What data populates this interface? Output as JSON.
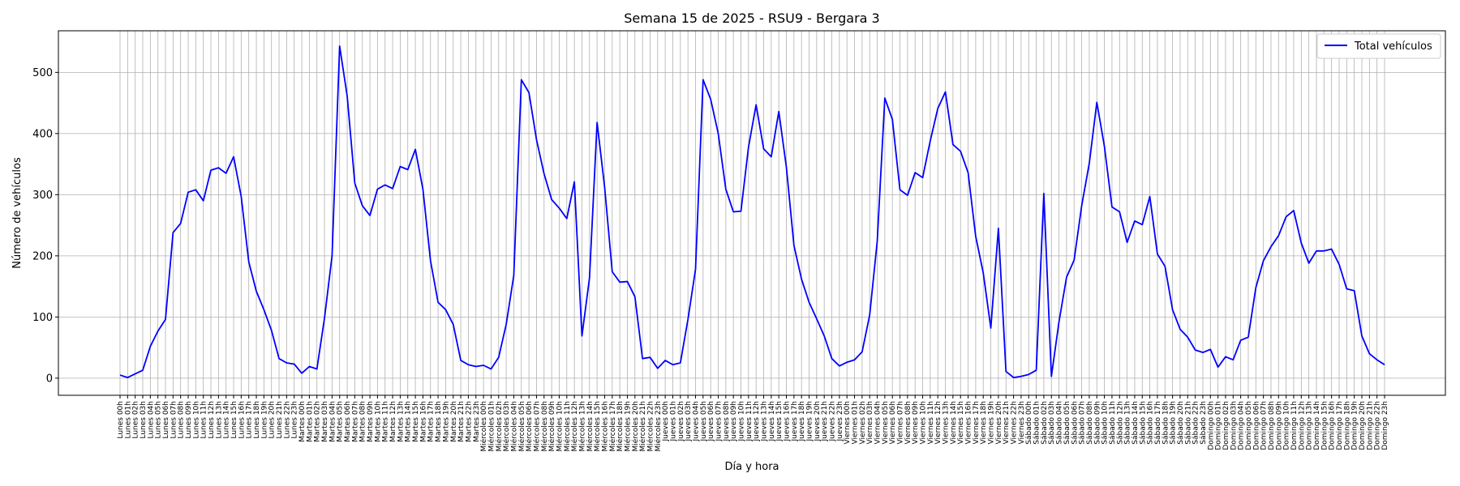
{
  "chart_data": {
    "type": "line",
    "title": "Semana 15 de 2025 - RSU9 - Bergara 3",
    "xlabel": "Día y hora",
    "ylabel": "Número de vehículos",
    "ylim": [
      -28,
      568
    ],
    "yticks": [
      0,
      100,
      200,
      300,
      400,
      500
    ],
    "grid": true,
    "legend": "top-right",
    "days": [
      "Lunes",
      "Martes",
      "Miércoles",
      "Jueves",
      "Viernes",
      "Sábado",
      "Domingo"
    ],
    "series": [
      {
        "name": "Total vehículos",
        "color": "#0000ff",
        "values": [
          5,
          1,
          7,
          13,
          52,
          77,
          96,
          238,
          253,
          304,
          308,
          290,
          340,
          344,
          335,
          362,
          297,
          190,
          142,
          112,
          78,
          32,
          25,
          23,
          8,
          19,
          15,
          98,
          200,
          543,
          461,
          319,
          282,
          266,
          309,
          316,
          310,
          346,
          341,
          374,
          309,
          192,
          124,
          112,
          88,
          29,
          22,
          19,
          21,
          15,
          34,
          88,
          168,
          488,
          467,
          390,
          334,
          292,
          278,
          261,
          321,
          69,
          164,
          418,
          312,
          174,
          157,
          158,
          133,
          32,
          34,
          16,
          29,
          22,
          25,
          96,
          178,
          488,
          456,
          400,
          309,
          272,
          273,
          378,
          447,
          375,
          362,
          436,
          345,
          217,
          162,
          124,
          97,
          69,
          32,
          20,
          26,
          30,
          43,
          103,
          224,
          458,
          423,
          308,
          299,
          336,
          328,
          388,
          441,
          468,
          382,
          371,
          336,
          232,
          172,
          82,
          245,
          11,
          1,
          3,
          6,
          13,
          302,
          3,
          92,
          165,
          193,
          282,
          351,
          451,
          379,
          280,
          272,
          222,
          257,
          251,
          297,
          203,
          183,
          112,
          80,
          67,
          46,
          42,
          47,
          18,
          35,
          30,
          62,
          67,
          148,
          192,
          215,
          233,
          264,
          274,
          221,
          188,
          208,
          208,
          211,
          186,
          146,
          143,
          69,
          40,
          30,
          22
        ]
      }
    ]
  }
}
